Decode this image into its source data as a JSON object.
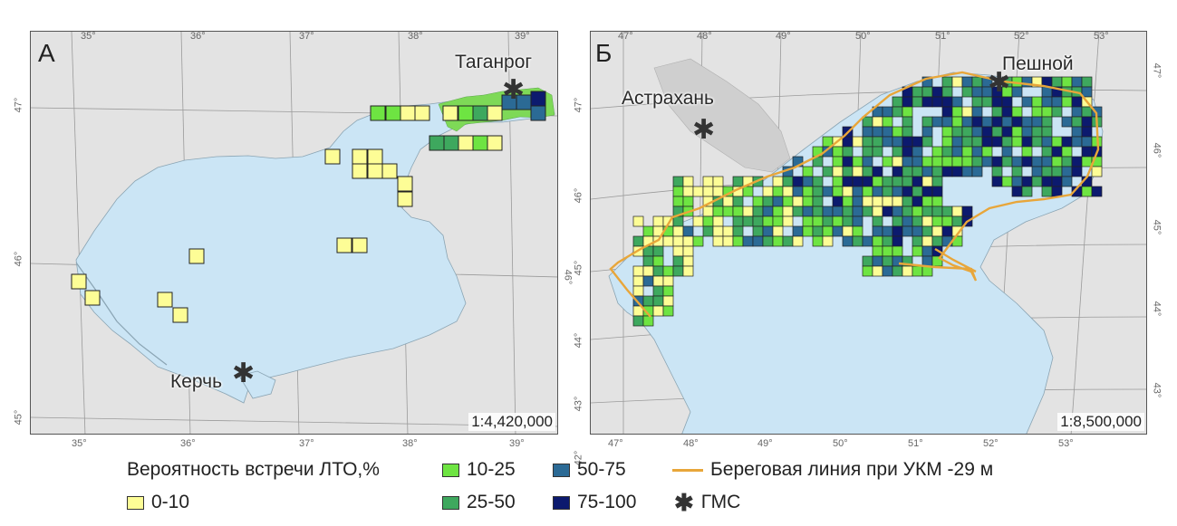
{
  "panel_a": {
    "letter": "А",
    "city_1": "Таганрог",
    "city_2": "Керчь",
    "scale": "1:4,420,000",
    "top_ticks": [
      "35°",
      "36°",
      "37°",
      "38°",
      "39°"
    ],
    "bottom_ticks": [
      "35°",
      "36°",
      "37°",
      "38°",
      "39°"
    ],
    "left_ticks": [
      "47°",
      "46°",
      "45°"
    ],
    "right_ticks": [
      "46°"
    ]
  },
  "panel_b": {
    "letter": "Б",
    "city_1": "Астрахань",
    "city_2": "Пешной",
    "scale": "1:8,500,000",
    "top_ticks": [
      "47°",
      "48°",
      "49°",
      "50°",
      "51°",
      "52°",
      "53°"
    ],
    "bottom_ticks": [
      "47°",
      "48°",
      "49°",
      "50°",
      "51°",
      "52°",
      "53°"
    ],
    "left_ticks": [
      "47°",
      "46°",
      "45°",
      "44°",
      "43°",
      "42°"
    ],
    "right_ticks": [
      "47°",
      "46°",
      "45°",
      "44°",
      "43°"
    ]
  },
  "gms_symbol": "✱",
  "legend": {
    "title": "Вероятность встречи ЛТО,%",
    "classes": [
      {
        "label": "0-10",
        "color": "#fdfd96"
      },
      {
        "label": "10-25",
        "color": "#6ee442"
      },
      {
        "label": "25-50",
        "color": "#3ea85e"
      },
      {
        "label": "50-75",
        "color": "#2b6a95"
      },
      {
        "label": "75-100",
        "color": "#0c1a6e"
      }
    ],
    "coastline_label": "Береговая линия при УКМ -29 м",
    "coastline_color": "#e8a63a",
    "gms_label": "ГМС"
  },
  "colors": {
    "sea": "#cbe5f5",
    "land": "#e3e3e3"
  }
}
